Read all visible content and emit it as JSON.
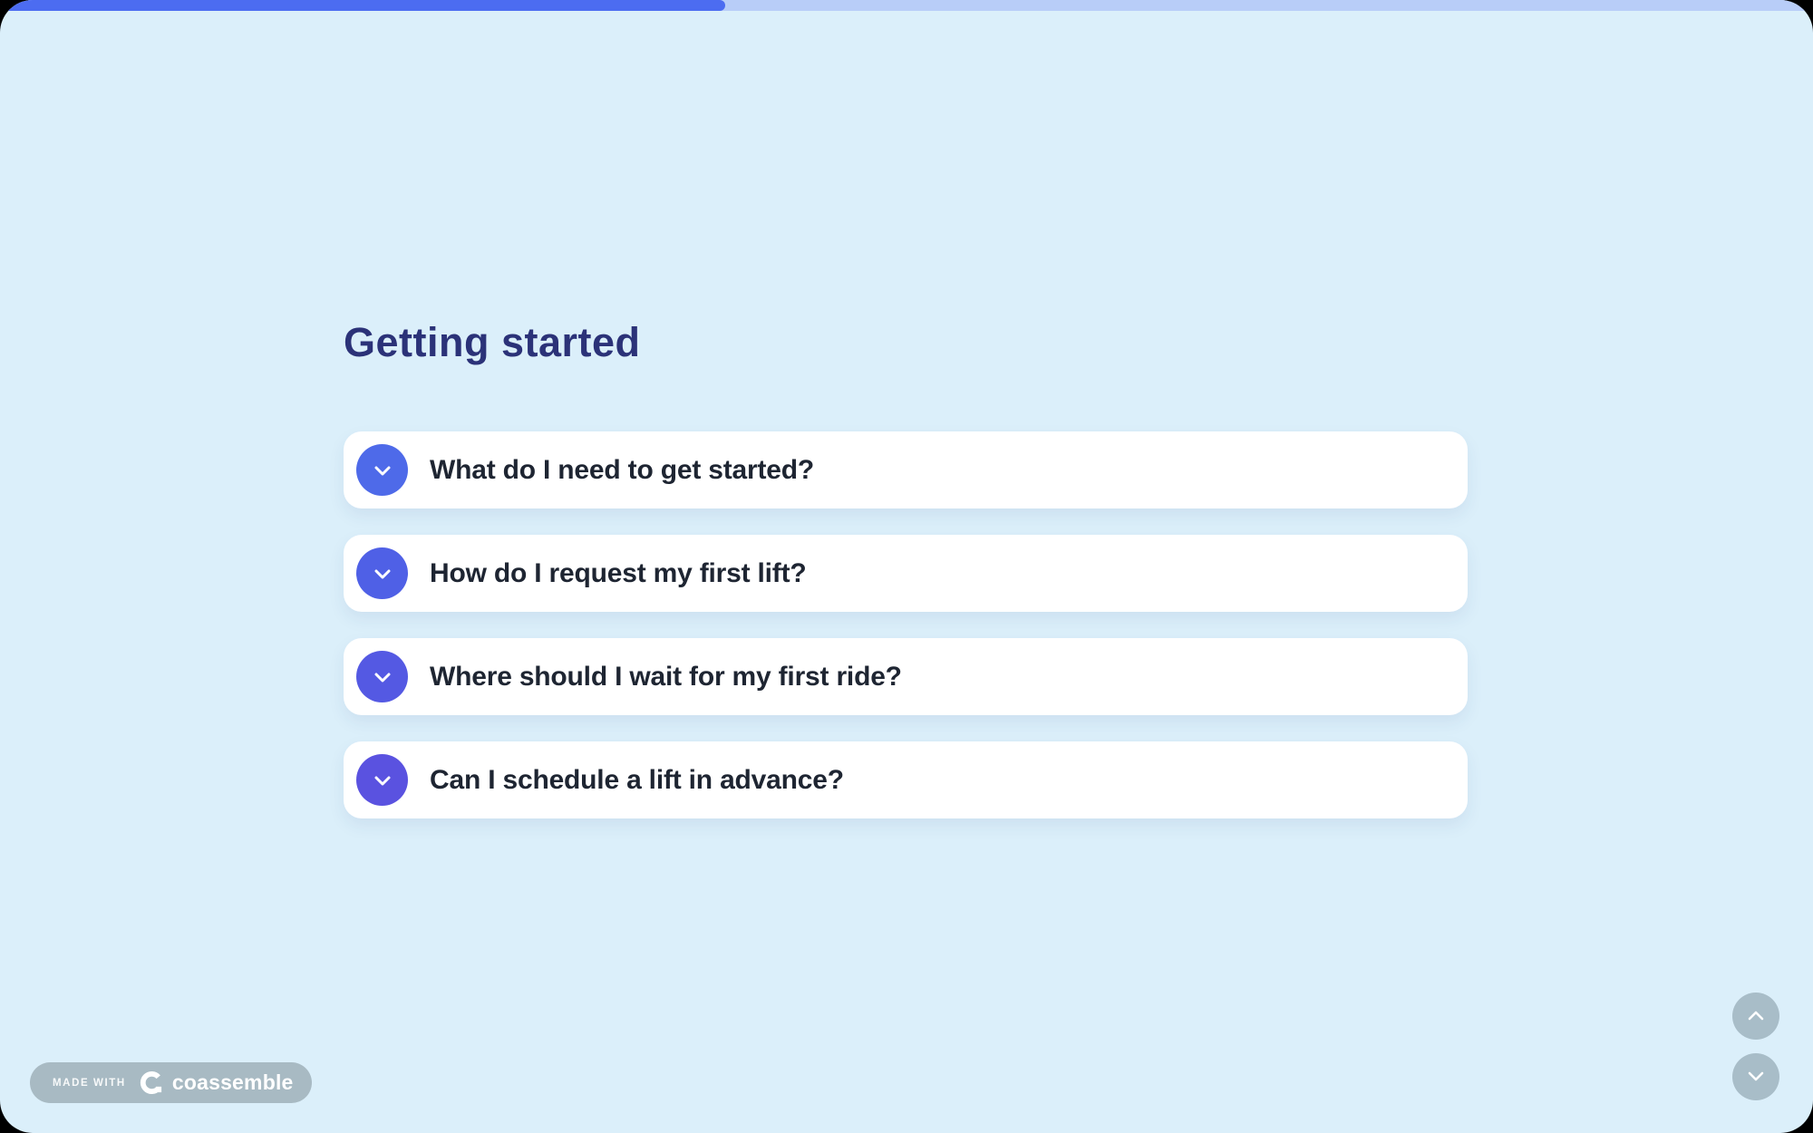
{
  "page": {
    "heading": "Getting started"
  },
  "progress": {
    "percent": 40,
    "fill_color": "#4c6cf1",
    "track_color": "#b8cdf8"
  },
  "faq": {
    "items": [
      {
        "label": "What do I need to get started?",
        "circle_color": "#4e6ae9"
      },
      {
        "label": "How do I request my first lift?",
        "circle_color": "#4f60e6"
      },
      {
        "label": "Where should I wait for my first ride?",
        "circle_color": "#5459e3"
      },
      {
        "label": "Can I schedule a lift in advance?",
        "circle_color": "#5a52e0"
      }
    ]
  },
  "badge": {
    "made_with": "MADE WITH",
    "brand": "coassemble"
  },
  "colors": {
    "page_background": "#dbeffa",
    "heading": "#2b3278",
    "question_text": "#1e2532",
    "badge_background": "#a8bac3",
    "nav_button_background": "#a8bdc8"
  }
}
